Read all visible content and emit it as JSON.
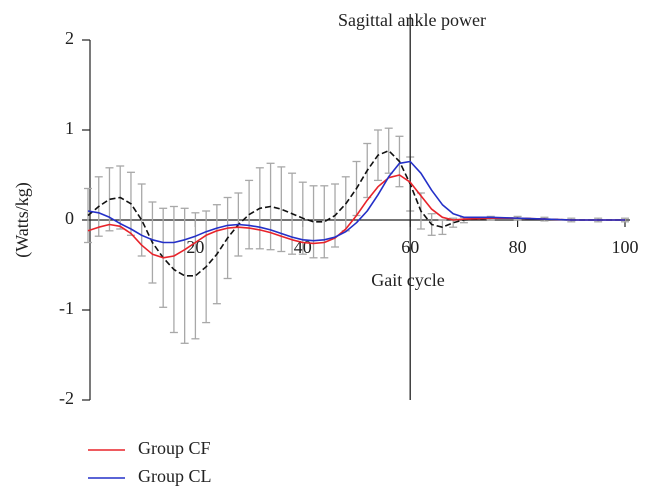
{
  "chart_data": {
    "type": "line",
    "title": "Sagittal ankle power",
    "x_label": "Gait cycle",
    "y_label": "(Watts/kg)",
    "x": [
      0,
      2,
      4,
      6,
      8,
      10,
      12,
      14,
      16,
      18,
      20,
      22,
      24,
      26,
      28,
      30,
      32,
      34,
      36,
      38,
      40,
      42,
      44,
      46,
      48,
      50,
      52,
      54,
      56,
      58,
      60,
      62,
      64,
      66,
      68,
      70,
      75,
      80,
      85,
      90,
      95,
      100
    ],
    "series": [
      {
        "name": "Group CF",
        "color": "#e8232a",
        "dash": false,
        "values": [
          -0.12,
          -0.08,
          -0.05,
          -0.07,
          -0.15,
          -0.28,
          -0.38,
          -0.42,
          -0.4,
          -0.33,
          -0.25,
          -0.17,
          -0.12,
          -0.09,
          -0.08,
          -0.09,
          -0.11,
          -0.14,
          -0.18,
          -0.22,
          -0.25,
          -0.26,
          -0.25,
          -0.2,
          -0.1,
          0.05,
          0.22,
          0.37,
          0.47,
          0.5,
          0.42,
          0.27,
          0.12,
          0.03,
          0.0,
          0.01,
          0.02,
          0.02,
          0.01,
          0.0,
          0.0,
          0.0
        ]
      },
      {
        "name": "Group CL",
        "color": "#2430c8",
        "dash": false,
        "values": [
          0.1,
          0.08,
          0.03,
          -0.04,
          -0.1,
          -0.17,
          -0.22,
          -0.25,
          -0.25,
          -0.22,
          -0.18,
          -0.13,
          -0.09,
          -0.06,
          -0.05,
          -0.06,
          -0.08,
          -0.11,
          -0.15,
          -0.19,
          -0.22,
          -0.23,
          -0.22,
          -0.19,
          -0.13,
          -0.03,
          0.1,
          0.28,
          0.48,
          0.63,
          0.65,
          0.52,
          0.33,
          0.17,
          0.07,
          0.03,
          0.03,
          0.02,
          0.01,
          0.0,
          0.0,
          0.0
        ]
      },
      {
        "color": "#111111",
        "dash": true,
        "error_color": "#a8a8a8",
        "values": [
          0.05,
          0.15,
          0.23,
          0.25,
          0.18,
          0.0,
          -0.25,
          -0.42,
          -0.55,
          -0.62,
          -0.62,
          -0.52,
          -0.38,
          -0.2,
          -0.05,
          0.06,
          0.13,
          0.15,
          0.12,
          0.07,
          0.02,
          -0.02,
          -0.02,
          0.05,
          0.18,
          0.35,
          0.55,
          0.72,
          0.77,
          0.65,
          0.4,
          0.1,
          -0.05,
          -0.08,
          -0.03,
          0.0,
          0.02,
          0.02,
          0.01,
          0.0,
          0.0,
          0.0
        ],
        "errors": [
          0.3,
          0.33,
          0.35,
          0.35,
          0.35,
          0.4,
          0.45,
          0.55,
          0.7,
          0.75,
          0.7,
          0.62,
          0.55,
          0.45,
          0.35,
          0.38,
          0.45,
          0.48,
          0.47,
          0.45,
          0.4,
          0.4,
          0.4,
          0.35,
          0.3,
          0.3,
          0.3,
          0.28,
          0.25,
          0.28,
          0.3,
          0.2,
          0.12,
          0.08,
          0.05,
          0.03,
          0.02,
          0.02,
          0.02,
          0.02,
          0.02,
          0.02
        ]
      }
    ],
    "xlim": [
      0,
      100
    ],
    "ylim": [
      -2,
      2
    ],
    "xticks": [
      20,
      40,
      60,
      80,
      100
    ],
    "yticks": [
      2,
      1,
      0,
      -1,
      -2
    ],
    "vline": 60,
    "legend": "bottom-left"
  }
}
